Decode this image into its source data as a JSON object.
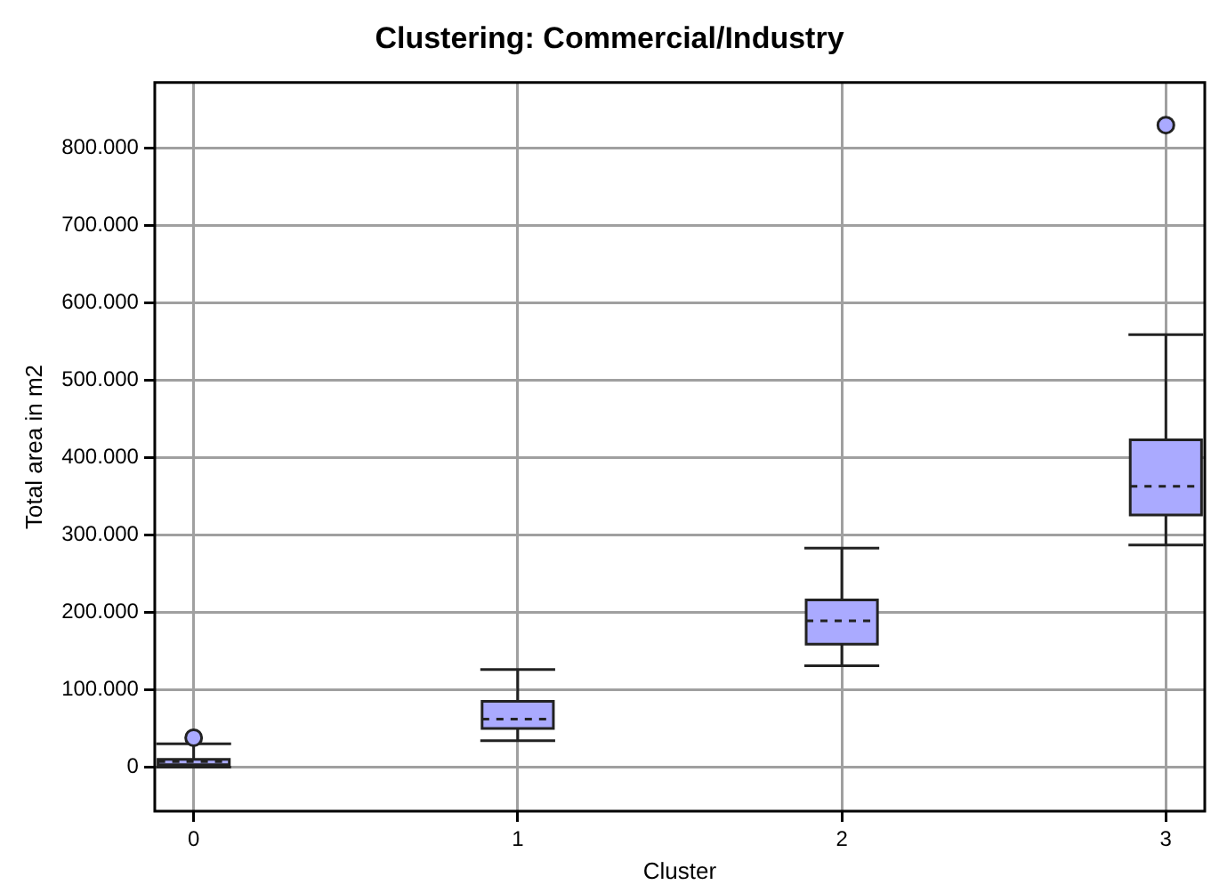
{
  "chart_data": {
    "type": "box",
    "title": "Clustering: Commercial/Industry",
    "xlabel": "Cluster",
    "ylabel": "Total area in m2",
    "categories": [
      "0",
      "1",
      "2",
      "3"
    ],
    "series": [
      {
        "color": "#aaaaff",
        "boxes": [
          {
            "low": 0,
            "q1": 3000,
            "median": 7000,
            "q3": 10000,
            "high": 30000,
            "outliers": [
              38000
            ]
          },
          {
            "low": 34000,
            "q1": 50000,
            "median": 62000,
            "q3": 85000,
            "high": 126000
          },
          {
            "low": 131000,
            "q1": 159000,
            "median": 189000,
            "q3": 216000,
            "high": 283000
          },
          {
            "low": 287000,
            "q1": 326000,
            "median": 363000,
            "q3": 423000,
            "high": 559000,
            "outliers": [
              830000
            ]
          }
        ]
      }
    ],
    "ylim": [
      -57000,
      885000
    ],
    "yticks": [
      {
        "value": 0,
        "label": "0"
      },
      {
        "value": 100000,
        "label": "100.000"
      },
      {
        "value": 200000,
        "label": "200.000"
      },
      {
        "value": 300000,
        "label": "300.000"
      },
      {
        "value": 400000,
        "label": "400.000"
      },
      {
        "value": 500000,
        "label": "500.000"
      },
      {
        "value": 600000,
        "label": "600.000"
      },
      {
        "value": 700000,
        "label": "700.000"
      },
      {
        "value": 800000,
        "label": "800.000"
      }
    ],
    "grid": true
  }
}
